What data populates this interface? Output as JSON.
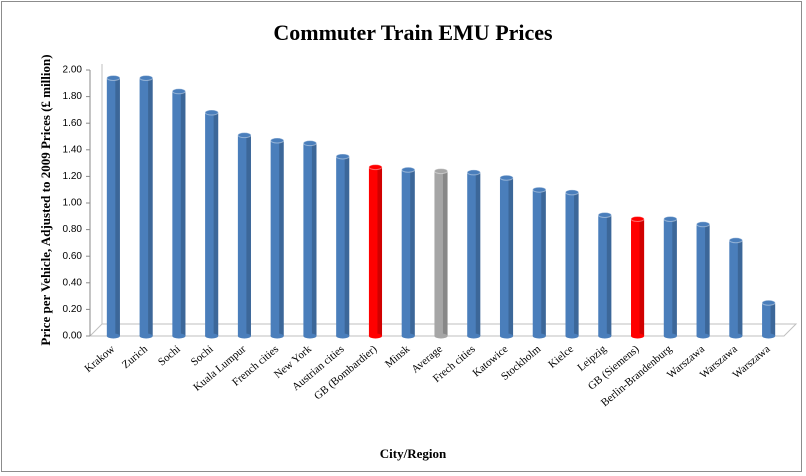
{
  "chart_data": {
    "type": "bar",
    "title": "Commuter Train EMU Prices",
    "x_label": "City/Region",
    "y_label": "Price per Vehicle, Adjusted to 2009 Prices (£ million)",
    "categories": [
      "Krakow",
      "Zurich",
      "Sochi",
      "Sochi",
      "Kuala Lumpur",
      "French cities",
      "New York",
      "Austrian cities",
      "GB (Bombardier)",
      "Minsk",
      "Average",
      "Frech cities",
      "Katowice",
      "Stockholm",
      "Kielce",
      "Leipzig",
      "GB (Siemens)",
      "Berlin-Brandenburg",
      "Warszawa",
      "Warszawa",
      "Warszawa"
    ],
    "values": [
      1.94,
      1.94,
      1.84,
      1.68,
      1.51,
      1.47,
      1.45,
      1.35,
      1.27,
      1.25,
      1.24,
      1.23,
      1.19,
      1.1,
      1.08,
      0.91,
      0.88,
      0.88,
      0.84,
      0.72,
      0.25
    ],
    "colors": [
      "#4a7ebb",
      "#4a7ebb",
      "#4a7ebb",
      "#4a7ebb",
      "#4a7ebb",
      "#4a7ebb",
      "#4a7ebb",
      "#4a7ebb",
      "#ff0000",
      "#4a7ebb",
      "#a6a6a6",
      "#4a7ebb",
      "#4a7ebb",
      "#4a7ebb",
      "#4a7ebb",
      "#4a7ebb",
      "#ff0000",
      "#4a7ebb",
      "#4a7ebb",
      "#4a7ebb",
      "#4a7ebb"
    ],
    "ylim": [
      0,
      2
    ],
    "yticks": [
      {
        "value": 0,
        "label": "0.00"
      },
      {
        "value": 0.2,
        "label": "0.20"
      },
      {
        "value": 0.4,
        "label": "0.40"
      },
      {
        "value": 0.6,
        "label": "0.60"
      },
      {
        "value": 0.8,
        "label": "0.80"
      },
      {
        "value": 1,
        "label": "1.00"
      },
      {
        "value": 1.2,
        "label": "1.20"
      },
      {
        "value": 1.4,
        "label": "1.40"
      },
      {
        "value": 1.6,
        "label": "1.60"
      },
      {
        "value": 1.8,
        "label": "1.80"
      },
      {
        "value": 2,
        "label": "2.00"
      }
    ]
  }
}
